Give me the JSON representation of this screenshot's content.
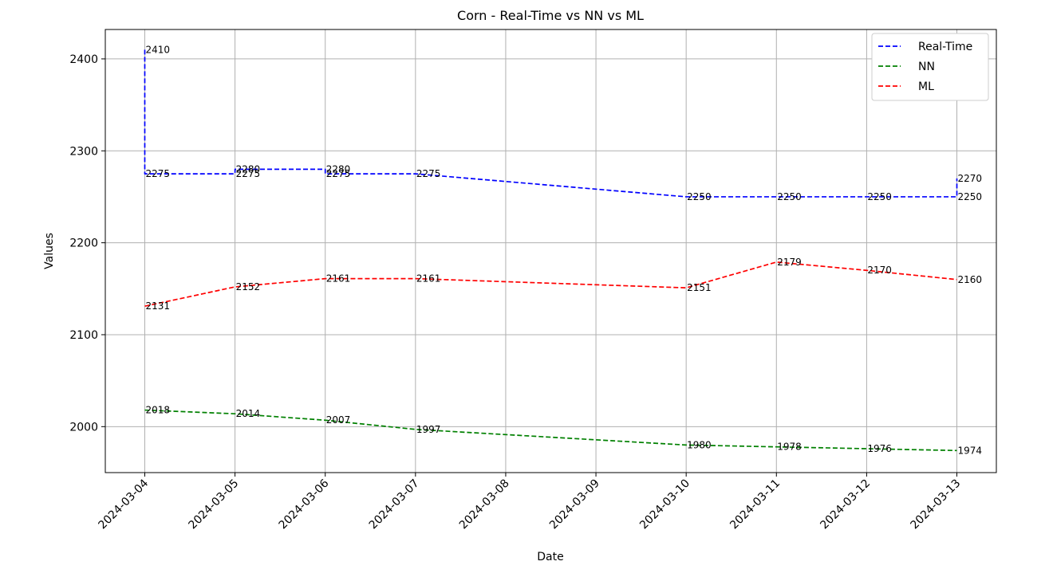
{
  "chart_data": {
    "type": "line",
    "title": "Corn - Real-Time vs NN vs ML",
    "xlabel": "Date",
    "ylabel": "Values",
    "x_ticks": [
      "2024-03-04",
      "2024-03-05",
      "2024-03-06",
      "2024-03-07",
      "2024-03-08",
      "2024-03-09",
      "2024-03-10",
      "2024-03-11",
      "2024-03-12",
      "2024-03-13"
    ],
    "y_ticks": [
      2000,
      2100,
      2200,
      2300,
      2400
    ],
    "xlim": [
      "2024-03-03 13:30",
      "2024-03-13 10:30"
    ],
    "ylim": [
      1950,
      2432
    ],
    "grid": true,
    "legend_position": "top-right",
    "series": [
      {
        "name": "Real-Time",
        "color": "#0000ff",
        "line_style": "dashed",
        "points": [
          {
            "x": "2024-03-04 00:00",
            "y": 2410
          },
          {
            "x": "2024-03-04 00:00",
            "y": 2275
          },
          {
            "x": "2024-03-05 00:00",
            "y": 2275
          },
          {
            "x": "2024-03-05 00:00",
            "y": 2280
          },
          {
            "x": "2024-03-06 00:00",
            "y": 2280
          },
          {
            "x": "2024-03-06 00:00",
            "y": 2275
          },
          {
            "x": "2024-03-07 00:00",
            "y": 2275
          },
          {
            "x": "2024-03-10 00:00",
            "y": 2250
          },
          {
            "x": "2024-03-11 00:00",
            "y": 2250
          },
          {
            "x": "2024-03-12 00:00",
            "y": 2250
          },
          {
            "x": "2024-03-13 00:00",
            "y": 2250
          },
          {
            "x": "2024-03-13 00:00",
            "y": 2270
          }
        ],
        "labels": [
          {
            "x": "2024-03-04",
            "y": 2410,
            "text": "2410"
          },
          {
            "x": "2024-03-04",
            "y": 2275,
            "text": "2275"
          },
          {
            "x": "2024-03-05",
            "y": 2275,
            "text": "2275"
          },
          {
            "x": "2024-03-05",
            "y": 2280,
            "text": "2280"
          },
          {
            "x": "2024-03-06",
            "y": 2280,
            "text": "2280"
          },
          {
            "x": "2024-03-06",
            "y": 2275,
            "text": "2275"
          },
          {
            "x": "2024-03-07",
            "y": 2275,
            "text": "2275"
          },
          {
            "x": "2024-03-10",
            "y": 2250,
            "text": "2250"
          },
          {
            "x": "2024-03-11",
            "y": 2250,
            "text": "2250"
          },
          {
            "x": "2024-03-12",
            "y": 2250,
            "text": "2250"
          },
          {
            "x": "2024-03-13",
            "y": 2250,
            "text": "2250"
          },
          {
            "x": "2024-03-13",
            "y": 2270,
            "text": "2270"
          }
        ]
      },
      {
        "name": "NN",
        "color": "#008000",
        "line_style": "dashed",
        "points": [
          {
            "x": "2024-03-04 00:00",
            "y": 2018
          },
          {
            "x": "2024-03-05 00:00",
            "y": 2014
          },
          {
            "x": "2024-03-06 00:00",
            "y": 2007
          },
          {
            "x": "2024-03-07 00:00",
            "y": 1997
          },
          {
            "x": "2024-03-10 00:00",
            "y": 1980
          },
          {
            "x": "2024-03-11 00:00",
            "y": 1978
          },
          {
            "x": "2024-03-12 00:00",
            "y": 1976
          },
          {
            "x": "2024-03-13 00:00",
            "y": 1974
          }
        ],
        "labels": [
          {
            "x": "2024-03-04",
            "y": 2018,
            "text": "2018"
          },
          {
            "x": "2024-03-05",
            "y": 2014,
            "text": "2014"
          },
          {
            "x": "2024-03-06",
            "y": 2007,
            "text": "2007"
          },
          {
            "x": "2024-03-07",
            "y": 1997,
            "text": "1997"
          },
          {
            "x": "2024-03-10",
            "y": 1980,
            "text": "1980"
          },
          {
            "x": "2024-03-11",
            "y": 1978,
            "text": "1978"
          },
          {
            "x": "2024-03-12",
            "y": 1976,
            "text": "1976"
          },
          {
            "x": "2024-03-13",
            "y": 1974,
            "text": "1974"
          }
        ]
      },
      {
        "name": "ML",
        "color": "#ff0000",
        "line_style": "dashed",
        "points": [
          {
            "x": "2024-03-04 00:00",
            "y": 2131
          },
          {
            "x": "2024-03-05 00:00",
            "y": 2152
          },
          {
            "x": "2024-03-06 00:00",
            "y": 2161
          },
          {
            "x": "2024-03-07 00:00",
            "y": 2161
          },
          {
            "x": "2024-03-10 00:00",
            "y": 2151
          },
          {
            "x": "2024-03-11 00:00",
            "y": 2179
          },
          {
            "x": "2024-03-12 00:00",
            "y": 2170
          },
          {
            "x": "2024-03-13 00:00",
            "y": 2160
          }
        ],
        "labels": [
          {
            "x": "2024-03-04",
            "y": 2131,
            "text": "2131"
          },
          {
            "x": "2024-03-05",
            "y": 2152,
            "text": "2152"
          },
          {
            "x": "2024-03-06",
            "y": 2161,
            "text": "2161"
          },
          {
            "x": "2024-03-07",
            "y": 2161,
            "text": "2161"
          },
          {
            "x": "2024-03-10",
            "y": 2151,
            "text": "2151"
          },
          {
            "x": "2024-03-11",
            "y": 2179,
            "text": "2179"
          },
          {
            "x": "2024-03-12",
            "y": 2170,
            "text": "2170"
          },
          {
            "x": "2024-03-13",
            "y": 2160,
            "text": "2160"
          }
        ]
      }
    ]
  }
}
